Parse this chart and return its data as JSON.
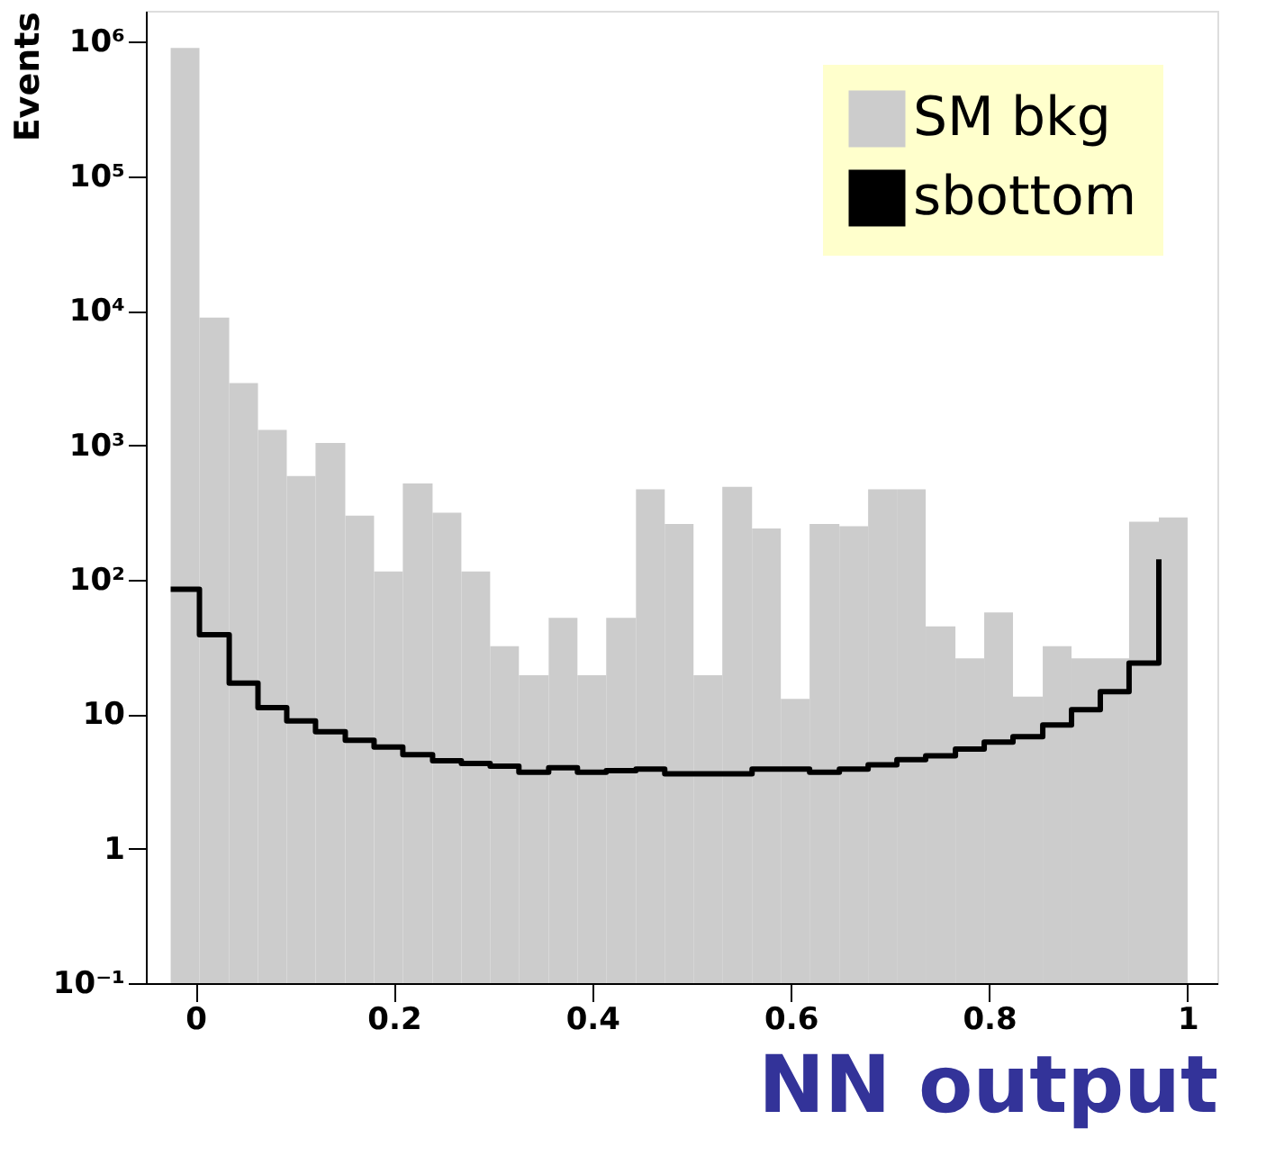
{
  "chart_data": {
    "type": "histogram",
    "xlabel": "NN output",
    "ylabel": "Events",
    "bins": [
      -0.025,
      0.004,
      0.034,
      0.063,
      0.092,
      0.121,
      0.151,
      0.18,
      0.209,
      0.239,
      0.268,
      0.297,
      0.326,
      0.356,
      0.385,
      0.414,
      0.444,
      0.473,
      0.502,
      0.531,
      0.561,
      0.59,
      0.619,
      0.649,
      0.678,
      0.707,
      0.736,
      0.766,
      0.795,
      0.824,
      0.854,
      0.883,
      0.912,
      0.941,
      0.971,
      1.0
    ],
    "series": [
      {
        "name": "SM bkg",
        "color": "#cccccc",
        "values": [
          900000,
          8900,
          2900,
          1300,
          590,
          1040,
          300,
          115,
          520,
          315,
          115,
          32,
          19.5,
          52,
          19.5,
          52,
          470,
          260,
          19.5,
          490,
          240,
          13,
          260,
          250,
          470,
          470,
          45,
          26,
          57,
          13.5,
          32,
          26,
          26,
          270,
          290
        ]
      },
      {
        "name": "sbottom",
        "type": "step",
        "color": "#000000",
        "x": [
          -0.025,
          0.004,
          0.034,
          0.063,
          0.092,
          0.121,
          0.151,
          0.18,
          0.209,
          0.239,
          0.268,
          0.297,
          0.326,
          0.356,
          0.385,
          0.414,
          0.444,
          0.473,
          0.502,
          0.531,
          0.561,
          0.59,
          0.619,
          0.649,
          0.678,
          0.707,
          0.736,
          0.766,
          0.795,
          0.824,
          0.854,
          0.883,
          0.912,
          0.941,
          0.971
        ],
        "values": [
          85,
          39,
          17,
          11.2,
          8.9,
          7.4,
          6.4,
          5.7,
          5.0,
          4.5,
          4.3,
          4.1,
          3.7,
          4.0,
          3.7,
          3.8,
          3.9,
          3.6,
          3.6,
          3.6,
          3.9,
          3.9,
          3.7,
          3.9,
          4.2,
          4.6,
          4.9,
          5.5,
          6.2,
          6.8,
          8.3,
          10.8,
          14.7,
          24,
          142
        ]
      }
    ],
    "log": true,
    "xlim": [
      -0.05,
      1.03
    ],
    "xticks": [
      0,
      0.2,
      0.4,
      0.6,
      0.8,
      1
    ],
    "ylim": [
      0.1,
      1700000
    ],
    "yticks": [
      {
        "value": 0.1,
        "label": "10⁻¹"
      },
      1,
      10,
      {
        "value": 100,
        "label": "10²"
      },
      {
        "value": 1000,
        "label": "10³"
      },
      {
        "value": 10000,
        "label": "10⁴"
      },
      {
        "value": 100000,
        "label": "10⁵"
      },
      {
        "value": 1000000,
        "label": "10⁶"
      }
    ],
    "grid": false,
    "legend": "top right"
  }
}
